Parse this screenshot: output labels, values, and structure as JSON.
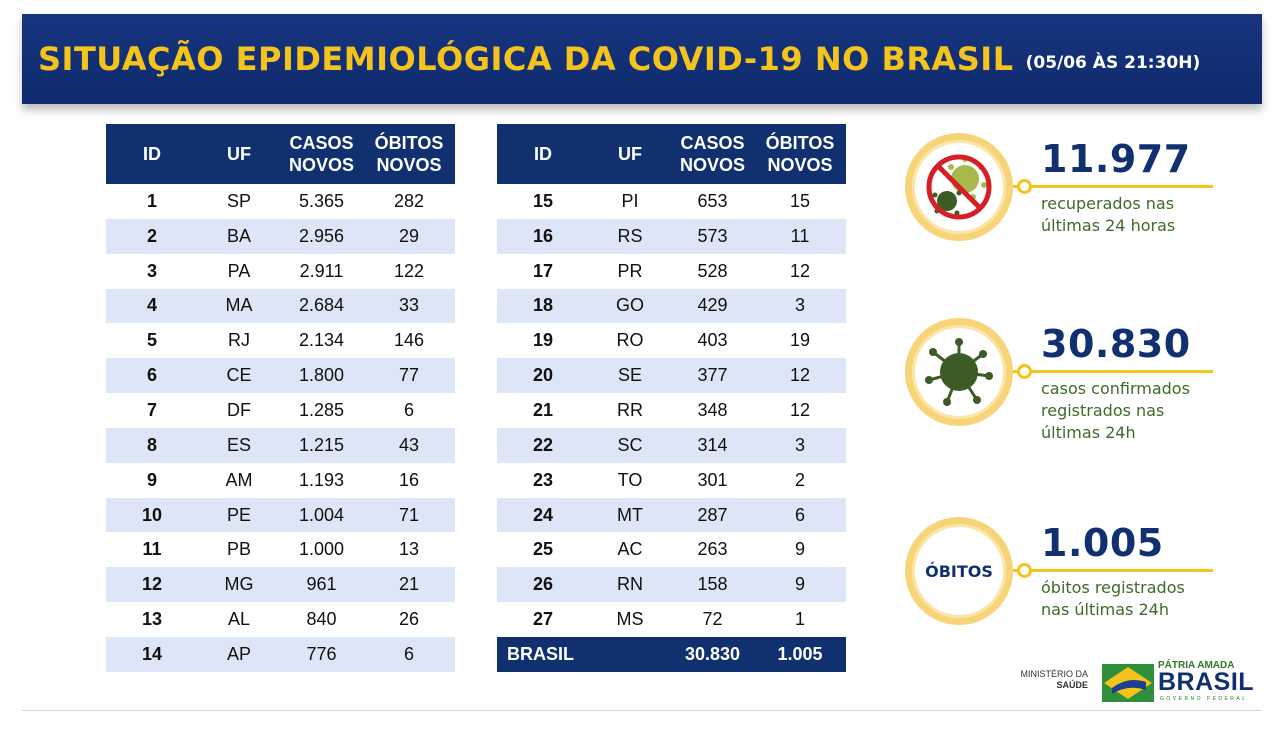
{
  "header": {
    "title": "SITUAÇÃO EPIDEMIOLÓGICA DA COVID-19 NO BRASIL",
    "subtitle": "(05/06 ÀS 21:30H)"
  },
  "table_headers": {
    "id": "ID",
    "uf": "UF",
    "casos_line1": "CASOS",
    "casos_line2": "NOVOS",
    "obitos_line1": "ÓBITOS",
    "obitos_line2": "NOVOS"
  },
  "left_rows": [
    {
      "id": "1",
      "uf": "SP",
      "casos": "5.365",
      "obitos": "282"
    },
    {
      "id": "2",
      "uf": "BA",
      "casos": "2.956",
      "obitos": "29"
    },
    {
      "id": "3",
      "uf": "PA",
      "casos": "2.911",
      "obitos": "122"
    },
    {
      "id": "4",
      "uf": "MA",
      "casos": "2.684",
      "obitos": "33"
    },
    {
      "id": "5",
      "uf": "RJ",
      "casos": "2.134",
      "obitos": "146"
    },
    {
      "id": "6",
      "uf": "CE",
      "casos": "1.800",
      "obitos": "77"
    },
    {
      "id": "7",
      "uf": "DF",
      "casos": "1.285",
      "obitos": "6"
    },
    {
      "id": "8",
      "uf": "ES",
      "casos": "1.215",
      "obitos": "43"
    },
    {
      "id": "9",
      "uf": "AM",
      "casos": "1.193",
      "obitos": "16"
    },
    {
      "id": "10",
      "uf": "PE",
      "casos": "1.004",
      "obitos": "71"
    },
    {
      "id": "11",
      "uf": "PB",
      "casos": "1.000",
      "obitos": "13"
    },
    {
      "id": "12",
      "uf": "MG",
      "casos": "961",
      "obitos": "21"
    },
    {
      "id": "13",
      "uf": "AL",
      "casos": "840",
      "obitos": "26"
    },
    {
      "id": "14",
      "uf": "AP",
      "casos": "776",
      "obitos": "6"
    }
  ],
  "right_rows": [
    {
      "id": "15",
      "uf": "PI",
      "casos": "653",
      "obitos": "15"
    },
    {
      "id": "16",
      "uf": "RS",
      "casos": "573",
      "obitos": "11"
    },
    {
      "id": "17",
      "uf": "PR",
      "casos": "528",
      "obitos": "12"
    },
    {
      "id": "18",
      "uf": "GO",
      "casos": "429",
      "obitos": "3"
    },
    {
      "id": "19",
      "uf": "RO",
      "casos": "403",
      "obitos": "19"
    },
    {
      "id": "20",
      "uf": "SE",
      "casos": "377",
      "obitos": "12"
    },
    {
      "id": "21",
      "uf": "RR",
      "casos": "348",
      "obitos": "12"
    },
    {
      "id": "22",
      "uf": "SC",
      "casos": "314",
      "obitos": "3"
    },
    {
      "id": "23",
      "uf": "TO",
      "casos": "301",
      "obitos": "2"
    },
    {
      "id": "24",
      "uf": "MT",
      "casos": "287",
      "obitos": "6"
    },
    {
      "id": "25",
      "uf": "AC",
      "casos": "263",
      "obitos": "9"
    },
    {
      "id": "26",
      "uf": "RN",
      "casos": "158",
      "obitos": "9"
    },
    {
      "id": "27",
      "uf": "MS",
      "casos": "72",
      "obitos": "1"
    }
  ],
  "total": {
    "label": "BRASIL",
    "casos": "30.830",
    "obitos": "1.005"
  },
  "stats": {
    "recuperados": {
      "value": "11.977",
      "line1": "recuperados nas",
      "line2": "últimas 24 horas",
      "icon": "no-virus-icon"
    },
    "casos": {
      "value": "30.830",
      "line1": "casos confirmados",
      "line2": "registrados nas",
      "line3": "últimas 24h",
      "icon": "virus-icon"
    },
    "obitos": {
      "value": "1.005",
      "badge": "ÓBITOS",
      "line1": "óbitos registrados",
      "line2": "nas últimas 24h"
    }
  },
  "footer": {
    "ministerio_line1": "MINISTÉRIO DA",
    "ministerio_line2": "SAÚDE",
    "patria": "PÁTRIA AMADA",
    "brasil": "BRASIL",
    "governo": "GOVERNO FEDERAL"
  },
  "colors": {
    "navy": "#10306f",
    "gold": "#f5c41c",
    "row_alt": "#dce6f7",
    "green_text": "#3f6a28"
  }
}
